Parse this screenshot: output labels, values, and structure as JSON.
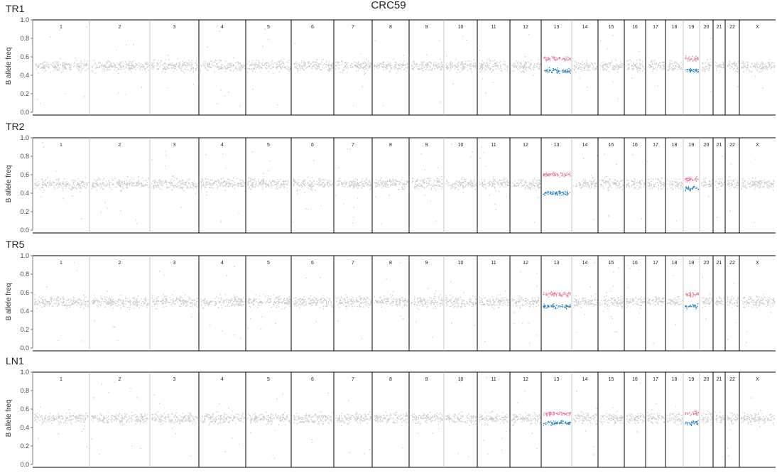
{
  "title": "CRC59",
  "ylabel": "B allele freq",
  "colors": {
    "background_snp": "#c9c9c9",
    "highlight_pink": "#e8789a",
    "highlight_blue": "#2e86c1",
    "separator_strong": "#000000",
    "separator_light": "#bbbbbb"
  },
  "chart_data": [
    {
      "type": "scatter",
      "sample": "TR1",
      "ylim": [
        0,
        1
      ],
      "yticks": [
        "0.0",
        "0.2",
        "0.4",
        "0.6",
        "0.8",
        "1.0"
      ],
      "chromosomes": [
        "1",
        "2",
        "3",
        "4",
        "5",
        "6",
        "7",
        "8",
        "9",
        "10",
        "11",
        "12",
        "13",
        "14",
        "15",
        "16",
        "17",
        "18",
        "19",
        "20",
        "21",
        "22",
        "X"
      ],
      "series": [
        {
          "values": [
            0.5,
            0.5,
            0.5,
            0.5,
            0.5,
            0.5,
            0.5,
            0.5,
            0.5,
            0.5,
            0.5,
            0.5,
            0.5,
            0.5,
            0.5,
            0.5,
            0.5,
            0.5,
            0.5,
            0.5,
            0.5,
            0.5,
            0.5
          ]
        },
        {
          "values": [
            null,
            null,
            null,
            null,
            null,
            null,
            null,
            null,
            null,
            null,
            null,
            null,
            0.58,
            null,
            null,
            null,
            null,
            null,
            0.58,
            null,
            null,
            null,
            null
          ]
        },
        {
          "values": [
            null,
            null,
            null,
            null,
            null,
            null,
            null,
            null,
            null,
            null,
            null,
            null,
            0.45,
            null,
            null,
            null,
            null,
            null,
            0.45,
            null,
            null,
            null,
            null
          ]
        }
      ]
    },
    {
      "type": "scatter",
      "sample": "TR2",
      "ylim": [
        0,
        1
      ],
      "yticks": [
        "0.0",
        "0.2",
        "0.4",
        "0.6",
        "0.8",
        "1.0"
      ],
      "chromosomes": [
        "1",
        "2",
        "3",
        "4",
        "5",
        "6",
        "7",
        "8",
        "9",
        "10",
        "11",
        "12",
        "13",
        "14",
        "15",
        "16",
        "17",
        "18",
        "19",
        "20",
        "21",
        "22",
        "X"
      ],
      "series": [
        {
          "values": [
            0.5,
            0.5,
            0.5,
            0.5,
            0.5,
            0.5,
            0.5,
            0.5,
            0.5,
            0.5,
            0.5,
            0.5,
            0.5,
            0.5,
            0.5,
            0.5,
            0.5,
            0.5,
            0.5,
            0.5,
            0.5,
            0.5,
            0.5
          ]
        },
        {
          "values": [
            null,
            null,
            null,
            null,
            null,
            null,
            null,
            null,
            null,
            null,
            null,
            null,
            0.6,
            null,
            null,
            null,
            null,
            null,
            0.55,
            null,
            null,
            null,
            null
          ]
        },
        {
          "values": [
            null,
            null,
            null,
            null,
            null,
            null,
            null,
            null,
            null,
            null,
            null,
            null,
            0.4,
            null,
            null,
            null,
            null,
            null,
            0.45,
            null,
            null,
            null,
            null
          ]
        }
      ]
    },
    {
      "type": "scatter",
      "sample": "TR5",
      "ylim": [
        0,
        1
      ],
      "yticks": [
        "0.0",
        "0.2",
        "0.4",
        "0.6",
        "0.8",
        "1.0"
      ],
      "chromosomes": [
        "1",
        "2",
        "3",
        "4",
        "5",
        "6",
        "7",
        "8",
        "9",
        "10",
        "11",
        "12",
        "13",
        "14",
        "15",
        "16",
        "17",
        "18",
        "19",
        "20",
        "21",
        "22",
        "X"
      ],
      "series": [
        {
          "values": [
            0.5,
            0.5,
            0.5,
            0.5,
            0.5,
            0.5,
            0.5,
            0.5,
            0.5,
            0.5,
            0.5,
            0.5,
            0.5,
            0.5,
            0.5,
            0.5,
            0.5,
            0.5,
            0.5,
            0.5,
            0.5,
            0.5,
            0.5
          ]
        },
        {
          "values": [
            null,
            null,
            null,
            null,
            null,
            null,
            null,
            null,
            null,
            null,
            null,
            null,
            0.58,
            null,
            null,
            null,
            null,
            null,
            0.58,
            null,
            null,
            null,
            null
          ]
        },
        {
          "values": [
            null,
            null,
            null,
            null,
            null,
            null,
            null,
            null,
            null,
            null,
            null,
            null,
            0.45,
            null,
            null,
            null,
            null,
            null,
            0.45,
            null,
            null,
            null,
            null
          ]
        }
      ]
    },
    {
      "type": "scatter",
      "sample": "LN1",
      "ylim": [
        0,
        1
      ],
      "yticks": [
        "0.0",
        "0.2",
        "0.4",
        "0.6",
        "0.8",
        "1.0"
      ],
      "chromosomes": [
        "1",
        "2",
        "3",
        "4",
        "5",
        "6",
        "7",
        "8",
        "9",
        "10",
        "11",
        "12",
        "13",
        "14",
        "15",
        "16",
        "17",
        "18",
        "19",
        "20",
        "21",
        "22",
        "X"
      ],
      "series": [
        {
          "values": [
            0.5,
            0.5,
            0.5,
            0.5,
            0.5,
            0.5,
            0.5,
            0.5,
            0.5,
            0.5,
            0.5,
            0.5,
            0.5,
            0.5,
            0.5,
            0.5,
            0.5,
            0.5,
            0.5,
            0.5,
            0.5,
            0.5,
            0.5
          ]
        },
        {
          "values": [
            null,
            null,
            null,
            null,
            null,
            null,
            null,
            null,
            null,
            null,
            null,
            null,
            0.55,
            null,
            null,
            null,
            null,
            null,
            0.55,
            null,
            null,
            null,
            null
          ]
        },
        {
          "values": [
            null,
            null,
            null,
            null,
            null,
            null,
            null,
            null,
            null,
            null,
            null,
            null,
            0.45,
            null,
            null,
            null,
            null,
            null,
            0.45,
            null,
            null,
            null,
            null
          ]
        }
      ]
    }
  ]
}
